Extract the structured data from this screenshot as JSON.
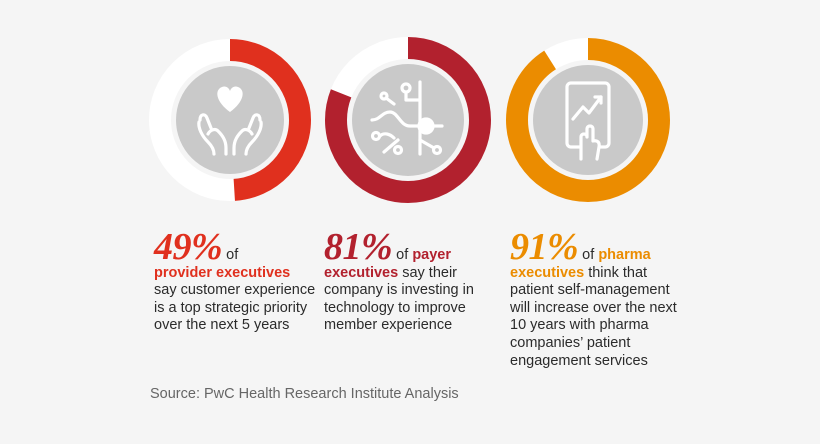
{
  "chart_data": [
    {
      "type": "pie",
      "value": 49,
      "color": "#e0301e",
      "icon": "hands-heart-icon",
      "stat": {
        "percent": "49%",
        "lead": " of ",
        "highlight": "provider executives",
        "body": "say customer experience is a top strategic priority over the next 5 years"
      }
    },
    {
      "type": "pie",
      "value": 81,
      "color": "#b2212e",
      "icon": "circuit-network-icon",
      "stat": {
        "percent": "81%",
        "lead": " of ",
        "highlight": "payer executives",
        "body": " say their company is investing in technology to improve member experience"
      }
    },
    {
      "type": "pie",
      "value": 91,
      "color": "#eb8c00",
      "icon": "tablet-touch-chart-icon",
      "stat": {
        "percent": "91%",
        "lead": " of ",
        "highlight": "pharma executives",
        "body": " think that patient self-management will increase over the next 10 years with pharma companies’ patient engagement services"
      }
    }
  ],
  "source": "Source: PwC Health Research Institute Analysis",
  "colors": {
    "ring_track": "#ffffff",
    "icon_disc": "#c9c9c9",
    "icon_line": "#ffffff",
    "text": "#2b2b2b",
    "source_text": "#666666"
  }
}
